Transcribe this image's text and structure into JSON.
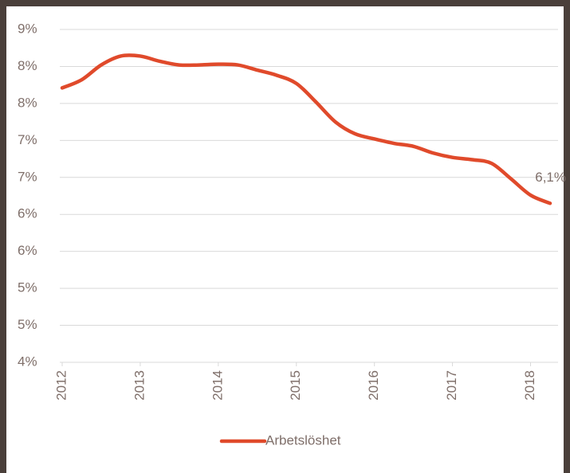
{
  "chart_data": {
    "type": "line",
    "x": [
      2012,
      2012.25,
      2012.5,
      2012.75,
      2013,
      2013.25,
      2013.5,
      2013.75,
      2014,
      2014.25,
      2014.5,
      2014.75,
      2015,
      2015.25,
      2015.5,
      2015.75,
      2016,
      2016.25,
      2016.5,
      2016.75,
      2017,
      2017.25,
      2017.5,
      2017.75,
      2018,
      2018.25
    ],
    "series": [
      {
        "name": "Arbetslöshet",
        "color": "#e04a2b",
        "values": [
          7.71,
          7.82,
          8.02,
          8.14,
          8.14,
          8.07,
          8.02,
          8.02,
          8.03,
          8.02,
          7.95,
          7.88,
          7.77,
          7.52,
          7.25,
          7.09,
          7.02,
          6.96,
          6.92,
          6.83,
          6.77,
          6.74,
          6.69,
          6.48,
          6.26,
          6.15
        ],
        "value_labels": [
          null,
          null,
          null,
          null,
          null,
          null,
          null,
          null,
          null,
          null,
          null,
          null,
          null,
          null,
          null,
          null,
          null,
          null,
          null,
          null,
          null,
          null,
          null,
          null,
          null,
          "6,1%"
        ]
      }
    ],
    "xlim": [
      2012,
      2018.25
    ],
    "xticks": [
      2012,
      2013,
      2014,
      2015,
      2016,
      2017,
      2018
    ],
    "ylim": [
      4,
      8.5
    ],
    "yticks": [
      {
        "value": 4,
        "label": "4%"
      },
      {
        "value": 4.5,
        "label": "5%"
      },
      {
        "value": 5,
        "label": "5%"
      },
      {
        "value": 5.5,
        "label": "6%"
      },
      {
        "value": 6,
        "label": "6%"
      },
      {
        "value": 6.5,
        "label": "7%"
      },
      {
        "value": 7,
        "label": "7%"
      },
      {
        "value": 7.5,
        "label": "8%"
      },
      {
        "value": 8,
        "label": "8%"
      },
      {
        "value": 8.5,
        "label": "9%"
      }
    ],
    "grid": true
  }
}
